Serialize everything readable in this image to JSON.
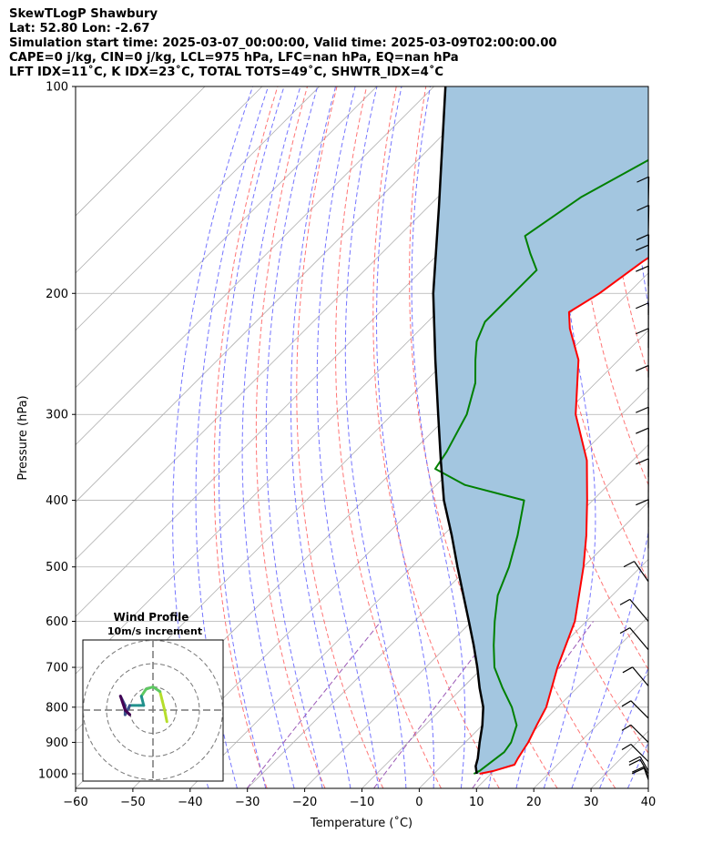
{
  "header": {
    "line1": "SkewTLogP Shawbury",
    "line2": "Lat: 52.80   Lon: -2.67",
    "line3": "Simulation start time: 2025-03-07_00:00:00, Valid time: 2025-03-09T02:00:00.00",
    "line4": "CAPE=0 j/kg, CIN=0 j/kg, LCL=975 hPa, LFC=nan hPa, EQ=nan hPa",
    "line5": "LFT IDX=11˚C, K IDX=23˚C, TOTAL TOTS=49˚C, SHWTR_IDX=4˚C"
  },
  "colors": {
    "temperature": "#ff0000",
    "dewpoint": "#008000",
    "parcel": "#000000",
    "cape_shading": "#a3c6e0",
    "dry_adiabat": "#ff6666",
    "moist_adiabat": "#6666ff",
    "mixing_ratio": "#9b59b6",
    "isotherm": "#b0b0b0",
    "isobar": "#b0b0b0"
  },
  "chart_data": {
    "type": "skew-t",
    "xlabel": "Temperature (˚C)",
    "ylabel": "Pressure (hPa)",
    "x_ticks": [
      "−60",
      "−50",
      "−40",
      "−30",
      "−20",
      "−10",
      "0",
      "10",
      "20",
      "30",
      "40"
    ],
    "x_tick_values": [
      -60,
      -50,
      -40,
      -30,
      -20,
      -10,
      0,
      10,
      20,
      30,
      40
    ],
    "y_ticks": [
      "100",
      "200",
      "300",
      "400",
      "500",
      "600",
      "700",
      "800",
      "900",
      "1000"
    ],
    "y_tick_values": [
      100,
      200,
      300,
      400,
      500,
      600,
      700,
      800,
      900,
      1000
    ],
    "xlim": [
      -60,
      40
    ],
    "ylim": [
      1050,
      100
    ],
    "scale": "log-pressure",
    "grid": true,
    "series": [
      {
        "key": "temperature",
        "points": [
          [
            1000,
            8
          ],
          [
            990,
            10
          ],
          [
            970,
            12.5
          ],
          [
            950,
            12
          ],
          [
            925,
            11.5
          ],
          [
            900,
            11
          ],
          [
            850,
            9.5
          ],
          [
            800,
            8
          ],
          [
            700,
            3
          ],
          [
            600,
            -2
          ],
          [
            500,
            -10
          ],
          [
            450,
            -15
          ],
          [
            400,
            -21
          ],
          [
            350,
            -28
          ],
          [
            300,
            -38
          ],
          [
            250,
            -47
          ],
          [
            225,
            -54
          ],
          [
            213,
            -57
          ],
          [
            200,
            -55
          ],
          [
            180,
            -53
          ],
          [
            160,
            -50
          ],
          [
            145,
            -47
          ],
          [
            135,
            -45
          ],
          [
            125,
            -43
          ],
          [
            117,
            -42
          ],
          [
            110,
            -41
          ],
          [
            105,
            -40
          ],
          [
            100,
            -40
          ]
        ]
      },
      {
        "key": "dewpoint",
        "points": [
          [
            1000,
            7
          ],
          [
            990,
            7.5
          ],
          [
            960,
            8
          ],
          [
            930,
            8.5
          ],
          [
            900,
            8
          ],
          [
            850,
            6
          ],
          [
            800,
            2
          ],
          [
            750,
            -3
          ],
          [
            700,
            -8
          ],
          [
            650,
            -12
          ],
          [
            600,
            -16
          ],
          [
            550,
            -20
          ],
          [
            500,
            -23
          ],
          [
            450,
            -27
          ],
          [
            400,
            -32
          ],
          [
            380,
            -45
          ],
          [
            360,
            -53
          ],
          [
            340,
            -54
          ],
          [
            300,
            -57
          ],
          [
            270,
            -61
          ],
          [
            250,
            -65
          ],
          [
            235,
            -68
          ],
          [
            220,
            -70
          ],
          [
            200,
            -70
          ],
          [
            185,
            -70
          ],
          [
            175,
            -74
          ],
          [
            165,
            -78
          ],
          [
            145,
            -75
          ],
          [
            120,
            -67
          ],
          [
            100,
            -60
          ]
        ]
      },
      {
        "key": "parcel",
        "points": [
          [
            1000,
            7.5
          ],
          [
            975,
            6
          ],
          [
            950,
            5
          ],
          [
            900,
            2.5
          ],
          [
            850,
            0
          ],
          [
            800,
            -3
          ],
          [
            750,
            -7
          ],
          [
            700,
            -11
          ],
          [
            650,
            -15.5
          ],
          [
            600,
            -20.5
          ],
          [
            550,
            -26
          ],
          [
            500,
            -32
          ],
          [
            450,
            -38.5
          ],
          [
            400,
            -46
          ],
          [
            350,
            -53.5
          ],
          [
            300,
            -62
          ],
          [
            250,
            -72
          ],
          [
            200,
            -84
          ],
          [
            150,
            -98
          ],
          [
            100,
            -118
          ]
        ]
      }
    ],
    "wind_barbs_pressure": [
      150,
      165,
      185,
      195,
      215,
      240,
      265,
      300,
      345,
      370,
      410,
      470,
      525,
      600,
      660,
      745,
      830,
      900,
      960,
      990,
      1000,
      1015,
      1020
    ],
    "hodograph": {
      "title": "Wind Profile",
      "subtitle": "10m/s increment",
      "ring_step_ms": 10,
      "points": [
        [
          6,
          -5
        ],
        [
          5,
          0
        ],
        [
          4,
          4
        ],
        [
          3,
          8
        ],
        [
          0,
          10
        ],
        [
          -3,
          9
        ],
        [
          -5,
          6
        ],
        [
          -4,
          2
        ],
        [
          -6,
          2
        ],
        [
          -10,
          2
        ],
        [
          -12,
          -2
        ],
        [
          -12,
          2
        ],
        [
          -14,
          6
        ],
        [
          -12,
          0
        ],
        [
          -10,
          -2
        ],
        [
          -12,
          0
        ]
      ]
    }
  }
}
